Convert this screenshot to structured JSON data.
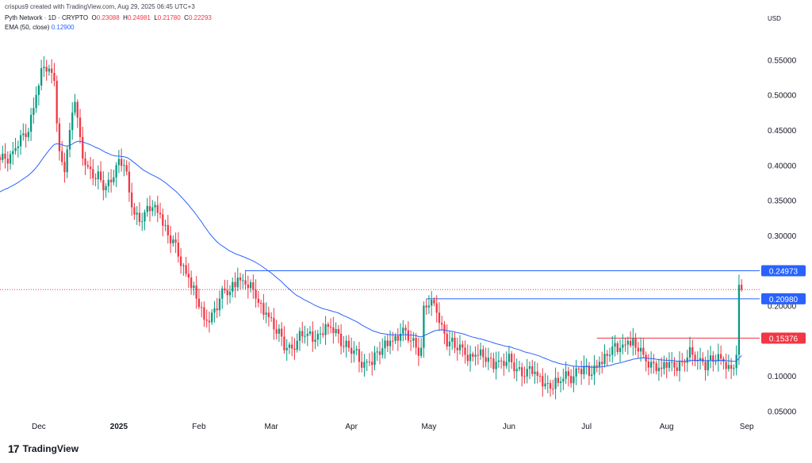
{
  "header": {
    "credit": "crispus9 created with TradingView.com, Aug 29, 2025 06:45 UTC+3",
    "symbol_line": "Pyth Network · 1D · CRYPTO",
    "o_label": "O",
    "o_value": "0.23088",
    "h_label": "H",
    "h_value": "0.24981",
    "l_label": "L",
    "l_value": "0.21780",
    "c_label": "C",
    "c_value": "0.22293",
    "ema_label": "EMA (50, close)",
    "ema_value": "0.12900",
    "currency": "USD"
  },
  "footer": {
    "logo_text": "TradingView",
    "logo_icon": "tradingview-logo-icon"
  },
  "colors": {
    "up": "#089981",
    "down": "#f23645",
    "ema": "#2962ff",
    "level_blue": "#2962ff",
    "level_red": "#f23645"
  },
  "chart_data": {
    "type": "candlestick",
    "y_axis": {
      "ticks": [
        "0.55000",
        "0.50000",
        "0.45000",
        "0.40000",
        "0.35000",
        "0.30000",
        "0.25000",
        "0.20000",
        "0.10000",
        "0.05000"
      ],
      "tick_values": [
        0.55,
        0.5,
        0.45,
        0.4,
        0.35,
        0.3,
        0.25,
        0.2,
        0.1,
        0.05
      ],
      "ylim": [
        0.02,
        0.59
      ],
      "position": "right"
    },
    "x_axis": {
      "ticks": [
        "Dec",
        "2025",
        "Feb",
        "Mar",
        "Apr",
        "May",
        "Jun",
        "Jul",
        "Aug",
        "Sep"
      ],
      "tick_days": [
        0,
        31,
        62,
        90,
        121,
        151,
        182,
        212,
        243,
        274
      ],
      "xlim": [
        -15,
        279
      ]
    },
    "price_tags": [
      {
        "label": "0.24973",
        "value": 0.2497,
        "color": "#2962ff",
        "line_from_day": 80
      },
      {
        "label": "0.20980",
        "value": 0.2098,
        "color": "#2962ff",
        "line_from_day": 150
      },
      {
        "label": "0.15376",
        "value": 0.1538,
        "color": "#f23645",
        "line_from_day": 216
      }
    ],
    "last_price": 0.2229,
    "anchors": [
      [
        -15,
        0.41
      ],
      [
        -10,
        0.42
      ],
      [
        -5,
        0.44
      ],
      [
        -1,
        0.5
      ],
      [
        2,
        0.54
      ],
      [
        6,
        0.52
      ],
      [
        8,
        0.42
      ],
      [
        10,
        0.39
      ],
      [
        12,
        0.45
      ],
      [
        14,
        0.49
      ],
      [
        16,
        0.44
      ],
      [
        18,
        0.4
      ],
      [
        22,
        0.38
      ],
      [
        26,
        0.37
      ],
      [
        30,
        0.4
      ],
      [
        33,
        0.4
      ],
      [
        36,
        0.34
      ],
      [
        40,
        0.32
      ],
      [
        44,
        0.34
      ],
      [
        47,
        0.33
      ],
      [
        50,
        0.3
      ],
      [
        54,
        0.27
      ],
      [
        58,
        0.24
      ],
      [
        61,
        0.21
      ],
      [
        64,
        0.18
      ],
      [
        67,
        0.19
      ],
      [
        70,
        0.21
      ],
      [
        74,
        0.22
      ],
      [
        77,
        0.24
      ],
      [
        80,
        0.23
      ],
      [
        84,
        0.21
      ],
      [
        88,
        0.19
      ],
      [
        92,
        0.16
      ],
      [
        96,
        0.14
      ],
      [
        100,
        0.15
      ],
      [
        104,
        0.16
      ],
      [
        108,
        0.16
      ],
      [
        112,
        0.17
      ],
      [
        116,
        0.16
      ],
      [
        120,
        0.14
      ],
      [
        124,
        0.12
      ],
      [
        128,
        0.12
      ],
      [
        132,
        0.13
      ],
      [
        136,
        0.15
      ],
      [
        140,
        0.16
      ],
      [
        144,
        0.15
      ],
      [
        148,
        0.14
      ],
      [
        149,
        0.2
      ],
      [
        151,
        0.2
      ],
      [
        154,
        0.19
      ],
      [
        157,
        0.16
      ],
      [
        161,
        0.14
      ],
      [
        165,
        0.13
      ],
      [
        169,
        0.13
      ],
      [
        173,
        0.12
      ],
      [
        177,
        0.12
      ],
      [
        181,
        0.12
      ],
      [
        185,
        0.11
      ],
      [
        189,
        0.11
      ],
      [
        193,
        0.1
      ],
      [
        197,
        0.09
      ],
      [
        201,
        0.09
      ],
      [
        205,
        0.1
      ],
      [
        209,
        0.11
      ],
      [
        213,
        0.1
      ],
      [
        217,
        0.12
      ],
      [
        221,
        0.13
      ],
      [
        225,
        0.14
      ],
      [
        228,
        0.15
      ],
      [
        231,
        0.14
      ],
      [
        234,
        0.13
      ],
      [
        237,
        0.12
      ],
      [
        241,
        0.11
      ],
      [
        245,
        0.12
      ],
      [
        249,
        0.12
      ],
      [
        253,
        0.13
      ],
      [
        257,
        0.12
      ],
      [
        261,
        0.12
      ],
      [
        265,
        0.12
      ],
      [
        268,
        0.11
      ],
      [
        270,
        0.13
      ],
      [
        271,
        0.2297
      ],
      [
        272,
        0.2229
      ]
    ]
  }
}
